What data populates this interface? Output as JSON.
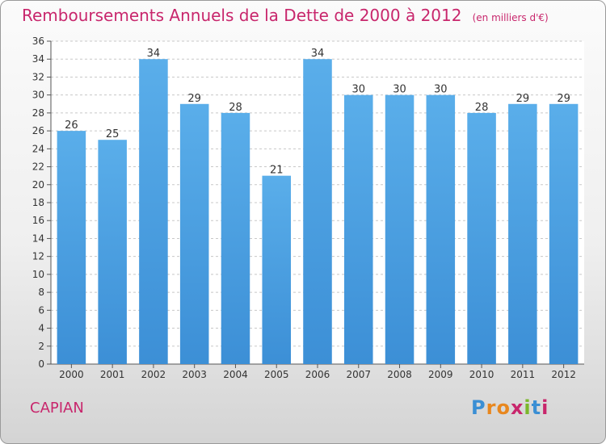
{
  "chart_data": {
    "type": "bar",
    "title": "Remboursements Annuels de la Dette de 2000 à 2012",
    "subtitle": "(en milliers d'€)",
    "categories": [
      "2000",
      "2001",
      "2002",
      "2003",
      "2004",
      "2005",
      "2006",
      "2007",
      "2008",
      "2009",
      "2010",
      "2011",
      "2012"
    ],
    "values": [
      26,
      25,
      34,
      29,
      28,
      21,
      34,
      30,
      30,
      30,
      28,
      29,
      29
    ],
    "ylim": [
      0,
      36
    ],
    "yticks": [
      0,
      2,
      4,
      6,
      8,
      10,
      12,
      14,
      16,
      18,
      20,
      22,
      24,
      26,
      28,
      30,
      32,
      34,
      36
    ],
    "grid": true,
    "bar_color": "#3c8fd6"
  },
  "footer": {
    "place": "CAPIAN",
    "brand": "Proxiti",
    "brand_colors": [
      "#3b8fd4",
      "#e8871e",
      "#e8871e",
      "#c8266c",
      "#7bb72b",
      "#3b8fd4",
      "#c8266c"
    ]
  }
}
